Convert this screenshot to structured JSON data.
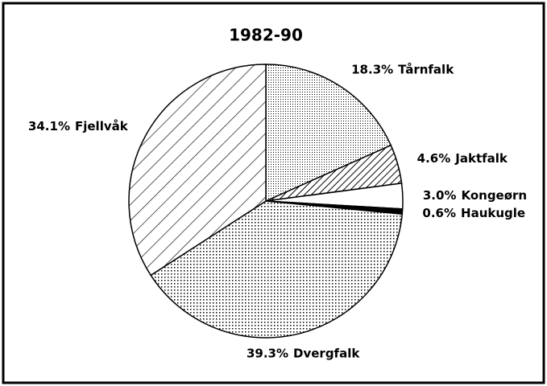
{
  "chart_data": {
    "type": "pie",
    "title": "1982-90",
    "categories": [
      "Tårnfalk",
      "Jaktfalk",
      "Kongeørn",
      "Haukugle",
      "Dvergfalk",
      "Fjellvåk"
    ],
    "values": [
      18.3,
      4.6,
      3.0,
      0.6,
      39.3,
      34.1
    ],
    "value_labels": [
      "18.3%",
      "4.6%",
      "3.0%",
      "0.6%",
      "39.3%",
      "34.1%"
    ],
    "patterns": [
      "fine-dots",
      "dense-hatch",
      "white",
      "black",
      "dots",
      "wide-hatch"
    ],
    "start_angle": 0,
    "direction": "clockwise"
  }
}
